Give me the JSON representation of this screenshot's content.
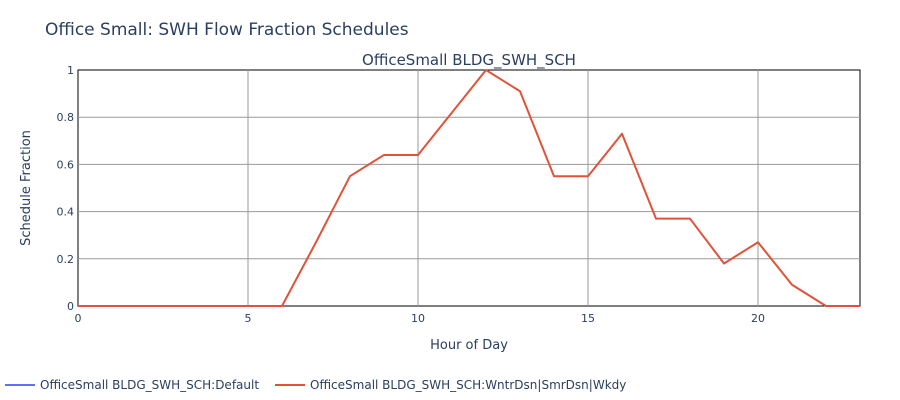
{
  "chart_data": {
    "type": "line",
    "title": "Office Small: SWH Flow Fraction Schedules",
    "subtitle": "OfficeSmall BLDG_SWH_SCH",
    "xlabel": "Hour of Day",
    "ylabel": "Schedule Fraction",
    "xlim": [
      0,
      23
    ],
    "ylim": [
      0,
      1
    ],
    "x_ticks": [
      0,
      5,
      10,
      15,
      20
    ],
    "y_ticks": [
      0,
      0.2,
      0.4,
      0.6,
      0.8,
      1
    ],
    "grid": true,
    "legend_position": "bottom",
    "series": [
      {
        "name": "OfficeSmall BLDG_SWH_SCH:Default",
        "color": "#636efa",
        "x": [],
        "y": []
      },
      {
        "name": "OfficeSmall BLDG_SWH_SCH:WntrDsn|SmrDsn|Wkdy",
        "color": "#e0533a",
        "x": [
          0,
          1,
          2,
          3,
          4,
          5,
          6,
          7,
          8,
          9,
          10,
          11,
          12,
          13,
          14,
          15,
          16,
          17,
          18,
          19,
          20,
          21,
          22,
          23
        ],
        "y": [
          0,
          0,
          0,
          0,
          0,
          0,
          0,
          0.27,
          0.55,
          0.64,
          0.64,
          0.82,
          1.0,
          0.91,
          0.55,
          0.55,
          0.73,
          0.37,
          0.37,
          0.18,
          0.27,
          0.09,
          0,
          0
        ]
      }
    ]
  }
}
